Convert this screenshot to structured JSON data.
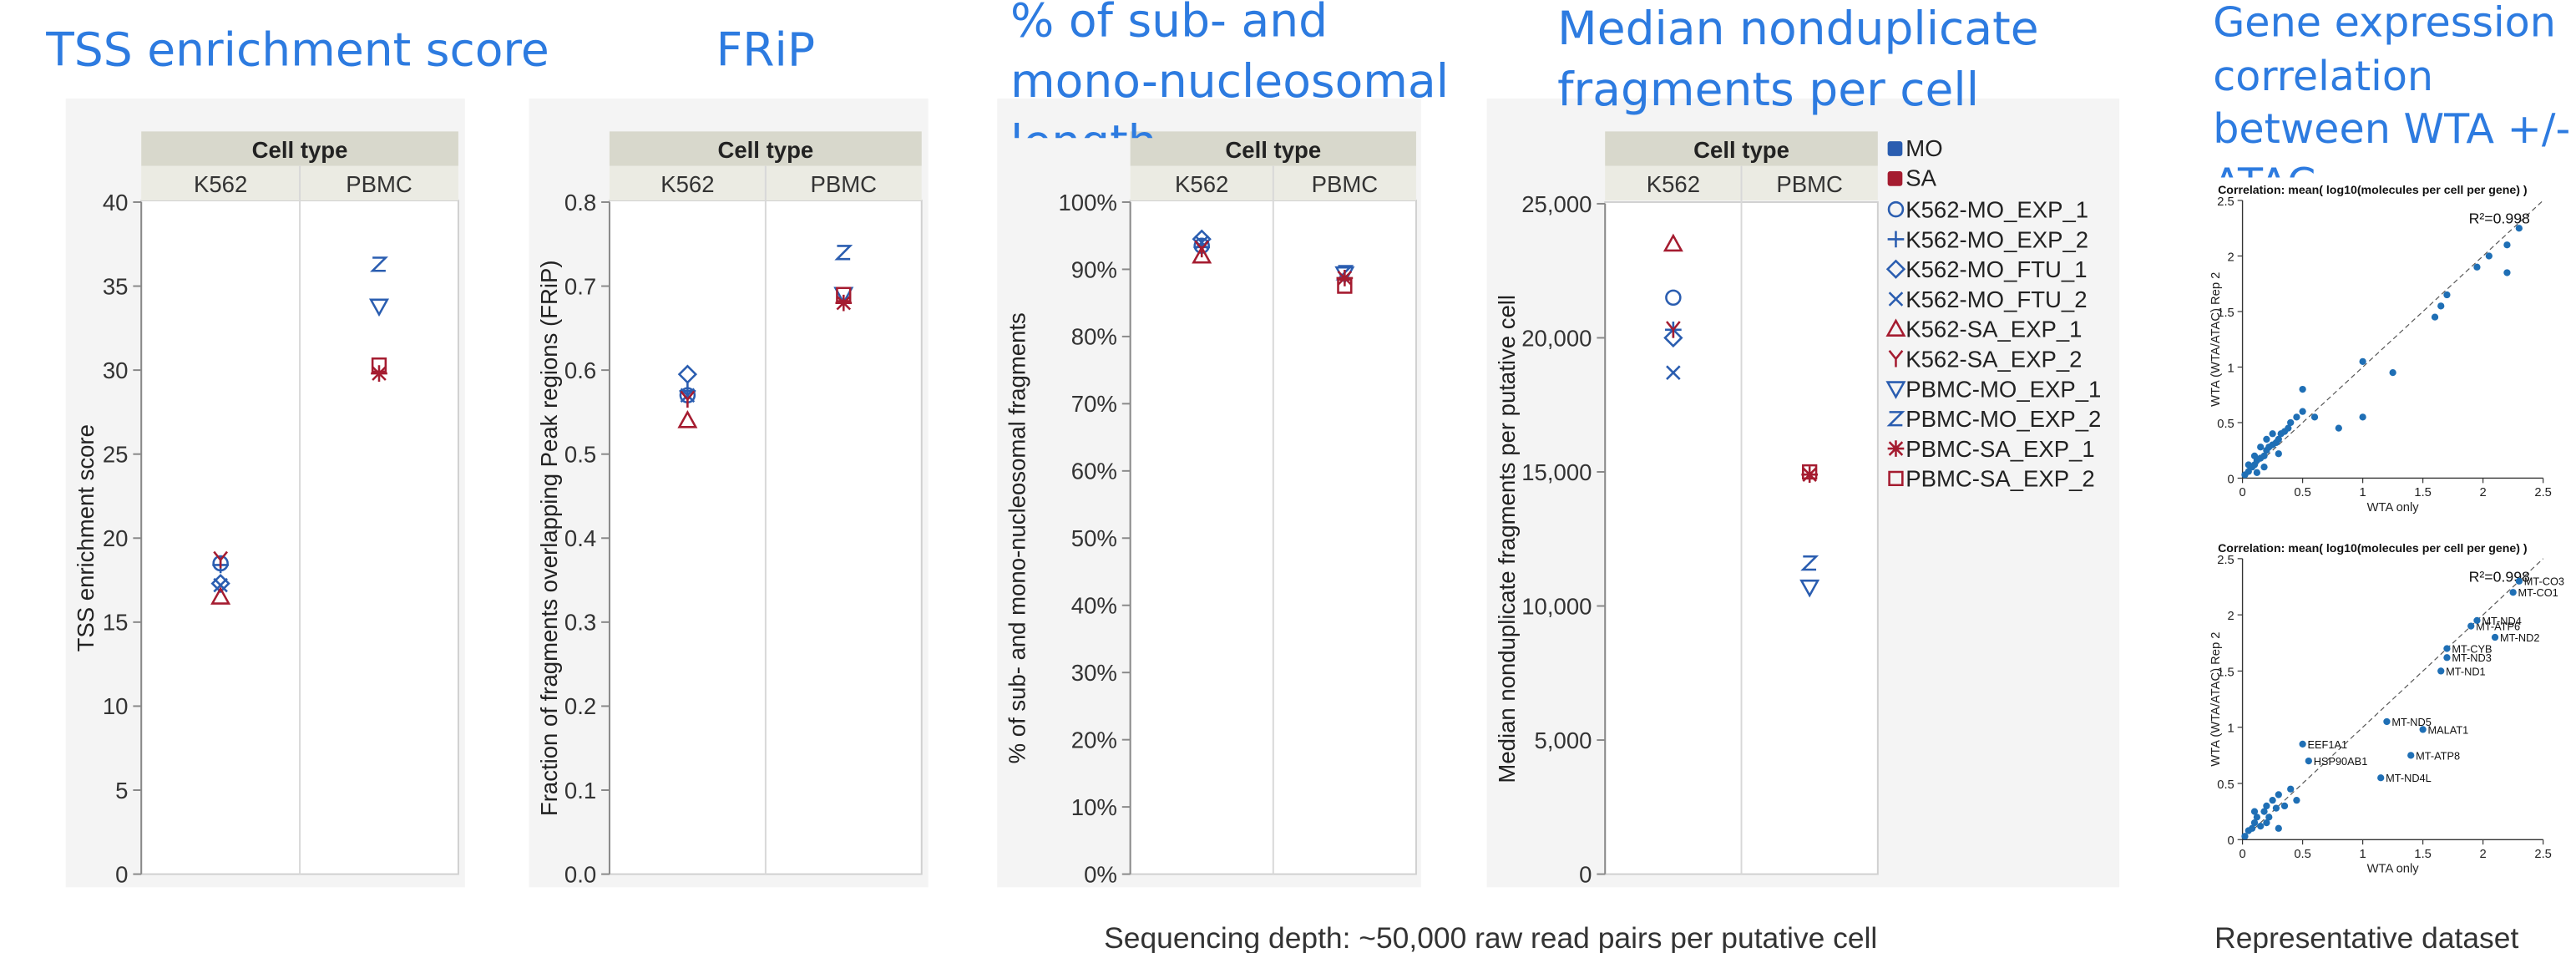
{
  "chart_data": [
    {
      "type": "categorical-scatter",
      "title": "TSS enrichment score",
      "header": "Cell type",
      "categories": [
        "K562",
        "PBMC"
      ],
      "y_label": "TSS enrichment score",
      "ylim": [
        0,
        40
      ],
      "yticks": [
        0,
        5,
        10,
        15,
        20,
        25,
        30,
        35,
        40
      ],
      "grid": false,
      "series": [
        {
          "color": "#2a5db0",
          "marker": "circle",
          "values": [
            18.5,
            null
          ]
        },
        {
          "color": "#2a5db0",
          "marker": "plus",
          "values": [
            18.4,
            null
          ]
        },
        {
          "color": "#2a5db0",
          "marker": "diamond",
          "values": [
            17.3,
            null
          ]
        },
        {
          "color": "#2a5db0",
          "marker": "x",
          "values": [
            17.2,
            null
          ]
        },
        {
          "color": "#a51c30",
          "marker": "triangle",
          "values": [
            16.5,
            null
          ]
        },
        {
          "color": "#a51c30",
          "marker": "y",
          "values": [
            18.7,
            null
          ]
        },
        {
          "color": "#2a5db0",
          "marker": "triangle-down",
          "values": [
            null,
            33.8
          ]
        },
        {
          "color": "#2a5db0",
          "marker": "z",
          "values": [
            null,
            36.3
          ]
        },
        {
          "color": "#a51c30",
          "marker": "asterisk",
          "values": [
            null,
            29.8
          ]
        },
        {
          "color": "#a51c30",
          "marker": "square",
          "values": [
            null,
            30.3
          ]
        }
      ]
    },
    {
      "type": "categorical-scatter",
      "title": "FRiP",
      "header": "Cell type",
      "categories": [
        "K562",
        "PBMC"
      ],
      "y_label": "Fraction of fragments overlapping Peak regions (FRiP)",
      "ylim": [
        0,
        0.8
      ],
      "yticks": [
        {
          "value": 0,
          "label": "0.0"
        },
        0.1,
        0.2,
        0.3,
        0.4,
        0.5,
        0.6,
        0.7,
        0.8
      ],
      "grid": false,
      "series": [
        {
          "color": "#2a5db0",
          "marker": "circle",
          "values": [
            0.57,
            null
          ]
        },
        {
          "color": "#2a5db0",
          "marker": "plus",
          "values": [
            0.575,
            null
          ]
        },
        {
          "color": "#2a5db0",
          "marker": "diamond",
          "values": [
            0.595,
            null
          ]
        },
        {
          "color": "#2a5db0",
          "marker": "x",
          "values": [
            0.57,
            null
          ]
        },
        {
          "color": "#a51c30",
          "marker": "triangle",
          "values": [
            0.54,
            null
          ]
        },
        {
          "color": "#a51c30",
          "marker": "y",
          "values": [
            0.565,
            null
          ]
        },
        {
          "color": "#2a5db0",
          "marker": "triangle-down",
          "values": [
            null,
            0.69
          ]
        },
        {
          "color": "#2a5db0",
          "marker": "z",
          "values": [
            null,
            0.74
          ]
        },
        {
          "color": "#a51c30",
          "marker": "asterisk",
          "values": [
            null,
            0.68
          ]
        },
        {
          "color": "#a51c30",
          "marker": "square",
          "values": [
            null,
            0.69
          ]
        }
      ]
    },
    {
      "type": "categorical-scatter",
      "title": "% of sub- and mono-nucleosomal length",
      "header": "Cell type",
      "categories": [
        "K562",
        "PBMC"
      ],
      "y_label": "% of sub- and mono-nucleosomal fragments",
      "ylim": [
        0,
        100
      ],
      "yticks": [
        {
          "value": 0,
          "label": "0%"
        },
        {
          "value": 10,
          "label": "10%"
        },
        {
          "value": 20,
          "label": "20%"
        },
        {
          "value": 30,
          "label": "30%"
        },
        {
          "value": 40,
          "label": "40%"
        },
        {
          "value": 50,
          "label": "50%"
        },
        {
          "value": 60,
          "label": "60%"
        },
        {
          "value": 70,
          "label": "70%"
        },
        {
          "value": 80,
          "label": "80%"
        },
        {
          "value": 90,
          "label": "90%"
        },
        {
          "value": 100,
          "label": "100%"
        }
      ],
      "grid": false,
      "series": [
        {
          "color": "#2a5db0",
          "marker": "circle",
          "values": [
            93.5,
            null
          ]
        },
        {
          "color": "#2a5db0",
          "marker": "plus",
          "values": [
            93.3,
            null
          ]
        },
        {
          "color": "#2a5db0",
          "marker": "diamond",
          "values": [
            94.5,
            null
          ]
        },
        {
          "color": "#2a5db0",
          "marker": "x",
          "values": [
            94.0,
            null
          ]
        },
        {
          "color": "#a51c30",
          "marker": "triangle",
          "values": [
            92.0,
            null
          ]
        },
        {
          "color": "#a51c30",
          "marker": "y",
          "values": [
            93.0,
            null
          ]
        },
        {
          "color": "#2a5db0",
          "marker": "triangle-down",
          "values": [
            null,
            89.3
          ]
        },
        {
          "color": "#2a5db0",
          "marker": "z",
          "values": [
            null,
            89.5
          ]
        },
        {
          "color": "#a51c30",
          "marker": "asterisk",
          "values": [
            null,
            88.7
          ]
        },
        {
          "color": "#a51c30",
          "marker": "square",
          "values": [
            null,
            87.5
          ]
        }
      ]
    },
    {
      "type": "categorical-scatter",
      "title": "Median nonduplicate fragments per cell",
      "header": "Cell type",
      "categories": [
        "K562",
        "PBMC"
      ],
      "y_label": "Median nonduplicate fragments per putative cell",
      "ylim": [
        0,
        25000
      ],
      "yticks": [
        0,
        {
          "value": 5000,
          "label": "5,000"
        },
        {
          "value": 10000,
          "label": "10,000"
        },
        {
          "value": 15000,
          "label": "15,000"
        },
        {
          "value": 20000,
          "label": "20,000"
        },
        {
          "value": 25000,
          "label": "25,000"
        }
      ],
      "grid": false,
      "legend_groups": [
        {
          "name": "MO",
          "color": "#2a5db0"
        },
        {
          "name": "SA",
          "color": "#a51c30"
        }
      ],
      "series": [
        {
          "name": "K562-MO_EXP_1",
          "color": "#2a5db0",
          "marker": "circle",
          "values": [
            21500,
            null
          ]
        },
        {
          "name": "K562-MO_EXP_2",
          "color": "#2a5db0",
          "marker": "plus",
          "values": [
            20300,
            null
          ]
        },
        {
          "name": "K562-MO_FTU_1",
          "color": "#2a5db0",
          "marker": "diamond",
          "values": [
            20000,
            null
          ]
        },
        {
          "name": "K562-MO_FTU_2",
          "color": "#2a5db0",
          "marker": "x",
          "values": [
            18700,
            null
          ]
        },
        {
          "name": "K562-SA_EXP_1",
          "color": "#a51c30",
          "marker": "triangle",
          "values": [
            23500,
            null
          ]
        },
        {
          "name": "K562-SA_EXP_2",
          "color": "#a51c30",
          "marker": "y",
          "values": [
            20300,
            null
          ]
        },
        {
          "name": "PBMC-MO_EXP_1",
          "color": "#2a5db0",
          "marker": "triangle-down",
          "values": [
            null,
            10700
          ]
        },
        {
          "name": "PBMC-MO_EXP_2",
          "color": "#2a5db0",
          "marker": "z",
          "values": [
            null,
            11600
          ]
        },
        {
          "name": "PBMC-SA_EXP_1",
          "color": "#a51c30",
          "marker": "asterisk",
          "values": [
            null,
            14900
          ]
        },
        {
          "name": "PBMC-SA_EXP_2",
          "color": "#a51c30",
          "marker": "square",
          "values": [
            null,
            15000
          ]
        }
      ]
    },
    {
      "type": "scatter",
      "title": "Gene expression correlation between WTA +/- ATAC",
      "subtitle": "Correlation: mean( log10(molecules per cell per gene) )",
      "annotation": "R²=0.998",
      "x_label": "WTA only",
      "y_label": "WTA (WTA/ATAC) Rep 2",
      "color": "#1f6fb5",
      "xlim": [
        0,
        2.5
      ],
      "xticks": [
        0,
        0.5,
        1,
        1.5,
        2,
        2.5
      ],
      "ylim": [
        0,
        2.5
      ],
      "yticks": [
        0,
        0.5,
        1,
        1.5,
        2,
        2.5
      ],
      "x": [
        0.02,
        0.05,
        0.08,
        0.1,
        0.12,
        0.15,
        0.18,
        0.2,
        0.22,
        0.25,
        0.28,
        0.3,
        0.32,
        0.35,
        0.38,
        0.05,
        0.1,
        0.15,
        0.2,
        0.25,
        0.3,
        0.12,
        0.18,
        0.4,
        0.45,
        0.5,
        0.5,
        0.6,
        0.8,
        1.0,
        1.25,
        1.0,
        1.6,
        1.65,
        1.7,
        1.95,
        2.05,
        2.2,
        2.2,
        2.3
      ],
      "values": [
        0.03,
        0.06,
        0.1,
        0.12,
        0.16,
        0.18,
        0.2,
        0.25,
        0.28,
        0.3,
        0.32,
        0.35,
        0.4,
        0.42,
        0.45,
        0.12,
        0.2,
        0.28,
        0.35,
        0.4,
        0.22,
        0.05,
        0.1,
        0.5,
        0.55,
        0.8,
        0.6,
        0.55,
        0.45,
        1.05,
        0.95,
        0.55,
        1.45,
        1.55,
        1.65,
        1.9,
        2.0,
        2.1,
        1.85,
        2.25
      ]
    },
    {
      "type": "scatter",
      "subtitle": "Correlation: mean( log10(molecules per cell per gene) )",
      "annotation": "R²=0.998",
      "x_label": "WTA only",
      "y_label": "WTA (WTA/ATAC) Rep 2",
      "color": "#1f6fb5",
      "xlim": [
        0,
        2.5
      ],
      "xticks": [
        0,
        0.5,
        1,
        1.5,
        2,
        2.5
      ],
      "ylim": [
        0,
        2.5
      ],
      "yticks": [
        0,
        0.5,
        1,
        1.5,
        2,
        2.5
      ],
      "x": [
        0.02,
        0.05,
        0.08,
        0.1,
        0.12,
        0.15,
        0.18,
        0.2,
        0.22,
        0.25,
        0.28,
        0.3,
        0.35,
        0.4,
        0.45,
        0.1,
        0.2,
        0.3,
        0.5,
        0.55,
        1.15,
        1.4,
        1.2,
        1.5,
        1.65,
        1.7,
        1.7,
        1.9,
        1.95,
        2.1,
        2.25,
        2.3
      ],
      "values": [
        0.03,
        0.08,
        0.1,
        0.15,
        0.2,
        0.12,
        0.25,
        0.3,
        0.2,
        0.35,
        0.28,
        0.4,
        0.3,
        0.45,
        0.35,
        0.25,
        0.15,
        0.1,
        0.85,
        0.7,
        0.55,
        0.75,
        1.05,
        0.98,
        1.5,
        1.62,
        1.7,
        1.9,
        1.95,
        1.8,
        2.2,
        2.3
      ],
      "labels": [
        null,
        null,
        null,
        null,
        null,
        null,
        null,
        null,
        null,
        null,
        null,
        null,
        null,
        null,
        null,
        null,
        null,
        null,
        "EEF1A1",
        "HSP90AB1",
        "MT-ND4L",
        "MT-ATP8",
        "MT-ND5",
        "MALAT1",
        "MT-ND1",
        "MT-ND3",
        "MT-CYB",
        "MT-ATP6",
        "MT-ND4",
        "MT-ND2",
        "MT-CO1",
        "MT-CO3"
      ]
    }
  ],
  "footnotes": [
    "Sequencing depth: ~50,000 raw read pairs per putative cell",
    "Representative dataset"
  ]
}
